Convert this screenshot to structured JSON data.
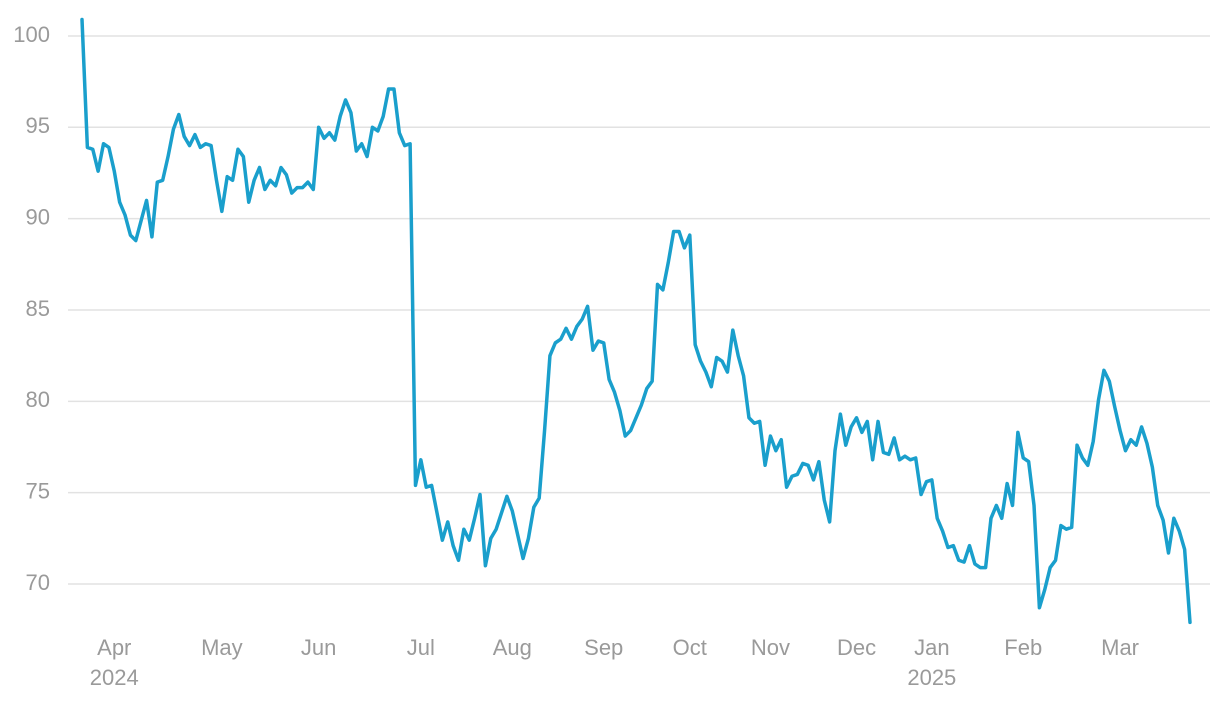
{
  "chart_data": {
    "type": "line",
    "color": "#1a9fcc",
    "grid": true,
    "ylim": [
      67.5,
      101
    ],
    "yticks": [
      70,
      75,
      80,
      85,
      90,
      95,
      100
    ],
    "categories": [
      null,
      null,
      null,
      null,
      null,
      null,
      "Apr\n2024",
      null,
      null,
      null,
      null,
      null,
      null,
      null,
      null,
      null,
      null,
      null,
      null,
      null,
      null,
      null,
      null,
      null,
      null,
      null,
      "May",
      null,
      null,
      null,
      null,
      null,
      null,
      null,
      null,
      null,
      null,
      null,
      null,
      null,
      null,
      null,
      null,
      null,
      "Jun",
      null,
      null,
      null,
      null,
      null,
      null,
      null,
      null,
      null,
      null,
      null,
      null,
      null,
      null,
      null,
      null,
      null,
      null,
      "Jul",
      null,
      null,
      null,
      null,
      null,
      null,
      null,
      null,
      null,
      null,
      null,
      null,
      null,
      null,
      null,
      null,
      "Aug",
      null,
      null,
      null,
      null,
      null,
      null,
      null,
      null,
      null,
      null,
      null,
      null,
      null,
      null,
      null,
      null,
      "Sep",
      null,
      null,
      null,
      null,
      null,
      null,
      null,
      null,
      null,
      null,
      null,
      null,
      null,
      null,
      null,
      "Oct",
      null,
      null,
      null,
      null,
      null,
      null,
      null,
      null,
      null,
      null,
      null,
      null,
      null,
      null,
      "Nov",
      null,
      null,
      null,
      null,
      null,
      null,
      null,
      null,
      null,
      null,
      null,
      null,
      null,
      null,
      null,
      "Dec",
      null,
      null,
      null,
      null,
      null,
      null,
      null,
      null,
      null,
      null,
      null,
      null,
      null,
      "Jan\n2025",
      null,
      null,
      null,
      null,
      null,
      null,
      null,
      null,
      null,
      null,
      null,
      null,
      null,
      null,
      null,
      null,
      "Feb",
      null,
      null,
      null,
      null,
      null,
      null,
      null,
      null,
      null,
      null,
      null,
      null,
      null,
      null,
      null,
      null,
      null,
      "Mar",
      null,
      null,
      null,
      null,
      null,
      null,
      null,
      null,
      null,
      null,
      null,
      null,
      null
    ],
    "values": [
      100.9,
      93.9,
      93.8,
      92.6,
      94.1,
      93.9,
      92.6,
      90.9,
      90.2,
      89.1,
      88.8,
      89.9,
      91.0,
      89.0,
      92.0,
      92.1,
      93.4,
      94.9,
      95.7,
      94.5,
      94.0,
      94.6,
      93.9,
      94.1,
      94.0,
      92.1,
      90.4,
      92.3,
      92.1,
      93.8,
      93.4,
      90.9,
      92.1,
      92.8,
      91.6,
      92.1,
      91.8,
      92.8,
      92.4,
      91.4,
      91.7,
      91.7,
      92.0,
      91.6,
      95.0,
      94.4,
      94.7,
      94.3,
      95.6,
      96.5,
      95.8,
      93.7,
      94.1,
      93.4,
      95.0,
      94.8,
      95.6,
      97.1,
      97.1,
      94.7,
      94.0,
      94.1,
      75.4,
      76.8,
      75.3,
      75.4,
      73.9,
      72.4,
      73.4,
      72.1,
      71.3,
      73.0,
      72.4,
      73.6,
      74.9,
      71.0,
      72.5,
      73.0,
      73.9,
      74.8,
      74.0,
      72.7,
      71.4,
      72.5,
      74.2,
      74.7,
      78.4,
      82.5,
      83.2,
      83.4,
      84.0,
      83.4,
      84.1,
      84.5,
      85.2,
      82.8,
      83.3,
      83.2,
      81.2,
      80.5,
      79.5,
      78.1,
      78.4,
      79.1,
      79.8,
      80.7,
      81.1,
      86.4,
      86.1,
      87.6,
      89.3,
      89.3,
      88.4,
      89.1,
      83.1,
      82.2,
      81.6,
      80.8,
      82.4,
      82.2,
      81.6,
      83.9,
      82.5,
      81.4,
      79.1,
      78.8,
      78.9,
      76.5,
      78.1,
      77.3,
      77.9,
      75.3,
      75.9,
      76.0,
      76.6,
      76.5,
      75.7,
      76.7,
      74.6,
      73.4,
      77.3,
      79.3,
      77.6,
      78.6,
      79.1,
      78.3,
      78.9,
      76.8,
      78.9,
      77.2,
      77.1,
      78.0,
      76.8,
      77.0,
      76.8,
      76.9,
      74.9,
      75.6,
      75.7,
      73.6,
      72.9,
      72.0,
      72.1,
      71.3,
      71.2,
      72.1,
      71.1,
      70.9,
      70.9,
      73.6,
      74.3,
      73.6,
      75.5,
      74.3,
      78.3,
      76.9,
      76.7,
      74.3,
      68.7,
      69.7,
      70.9,
      71.3,
      73.2,
      73.0,
      73.1,
      77.6,
      76.9,
      76.5,
      77.8,
      80.1,
      81.7,
      81.1,
      79.7,
      78.4,
      77.3,
      77.9,
      77.6,
      78.6,
      77.7,
      76.4,
      74.3,
      73.5,
      71.7,
      73.6,
      72.9,
      71.9,
      67.9
    ]
  }
}
